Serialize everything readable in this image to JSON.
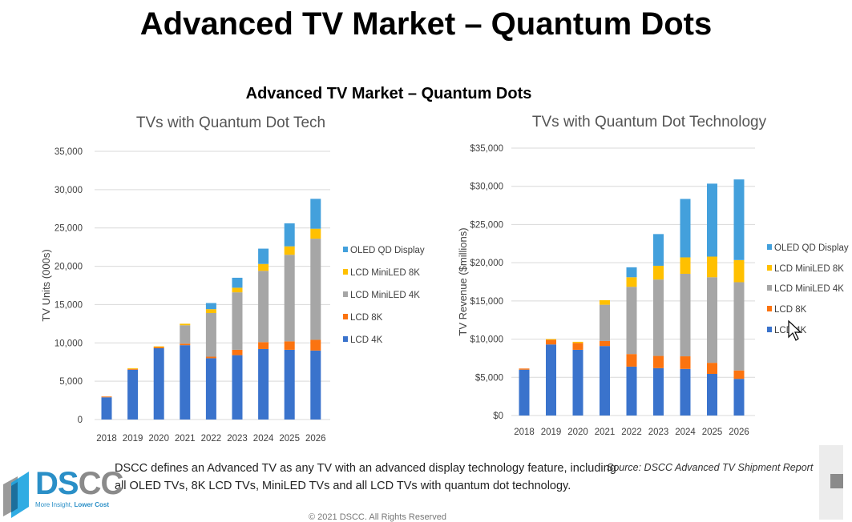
{
  "title": "Advanced TV Market – Quantum Dots",
  "subtitle": "Advanced TV Market – Quantum Dots",
  "colors": {
    "LCD 4K": "#3a73cc",
    "LCD 8K": "#fb7310",
    "LCD MiniLED 4K": "#a6a6a6",
    "LCD MiniLED 8K": "#ffc000",
    "OLED QD Display": "#43a0dc"
  },
  "chart_data": [
    {
      "type": "bar",
      "stacked": true,
      "title": "TVs with Quantum Dot Tech",
      "xlabel": "",
      "ylabel": "TV Units (000s)",
      "ylim": [
        0,
        35000
      ],
      "yticks": [
        "0",
        "5,000",
        "10,000",
        "15,000",
        "20,000",
        "25,000",
        "30,000",
        "35,000"
      ],
      "grid": true,
      "legend": "right",
      "categories": [
        "2018",
        "2019",
        "2020",
        "2021",
        "2022",
        "2023",
        "2024",
        "2025",
        "2026"
      ],
      "series": [
        {
          "name": "LCD 4K",
          "values": [
            2900,
            6500,
            9300,
            9700,
            8000,
            8400,
            9200,
            9100,
            9000
          ]
        },
        {
          "name": "LCD 8K",
          "values": [
            100,
            100,
            150,
            200,
            200,
            700,
            900,
            1100,
            1400
          ]
        },
        {
          "name": "LCD MiniLED 4K",
          "values": [
            0,
            0,
            0,
            2400,
            5700,
            7500,
            9300,
            11300,
            13200
          ]
        },
        {
          "name": "LCD MiniLED 8K",
          "values": [
            0,
            100,
            100,
            200,
            500,
            600,
            900,
            1100,
            1300
          ]
        },
        {
          "name": "OLED QD Display",
          "values": [
            0,
            0,
            0,
            0,
            800,
            1300,
            2000,
            3000,
            3900
          ]
        }
      ]
    },
    {
      "type": "bar",
      "stacked": true,
      "title": "TVs with Quantum Dot Technology",
      "xlabel": "",
      "ylabel": "TV Revenue ($millions)",
      "ylim": [
        0,
        35000
      ],
      "yticks": [
        "$0",
        "$5,000",
        "$10,000",
        "$15,000",
        "$20,000",
        "$25,000",
        "$30,000",
        "$35,000"
      ],
      "grid": true,
      "legend": "right",
      "categories": [
        "2018",
        "2019",
        "2020",
        "2021",
        "2022",
        "2023",
        "2024",
        "2025",
        "2026"
      ],
      "series": [
        {
          "name": "LCD 4K",
          "values": [
            6000,
            9300,
            8600,
            9100,
            6400,
            6200,
            6100,
            5450,
            4800
          ]
        },
        {
          "name": "LCD 8K",
          "values": [
            150,
            600,
            900,
            650,
            1650,
            1600,
            1650,
            1450,
            1100
          ]
        },
        {
          "name": "LCD MiniLED 4K",
          "values": [
            0,
            0,
            0,
            4750,
            8800,
            10000,
            10800,
            11200,
            11550
          ]
        },
        {
          "name": "LCD MiniLED 8K",
          "values": [
            0,
            100,
            150,
            600,
            1250,
            1800,
            2150,
            2700,
            2900
          ]
        },
        {
          "name": "OLED QD Display",
          "values": [
            0,
            0,
            0,
            0,
            1300,
            4150,
            7650,
            9550,
            10550
          ]
        }
      ]
    }
  ],
  "footer": {
    "line1": "DSCC defines an Advanced TV as any TV with an advanced display technology feature, including",
    "line2": "all OLED TVs, 8K LCD TVs, MiniLED TVs and all LCD TVs with quantum dot technology.",
    "source": "Source: DSCC Advanced TV Shipment Report",
    "copyright": "© 2021 DSCC. All Rights Reserved"
  },
  "logo": {
    "text_a": "DS",
    "text_b": "CC",
    "tagline_a": "More Insight, ",
    "tagline_b": "Lower Cost"
  }
}
